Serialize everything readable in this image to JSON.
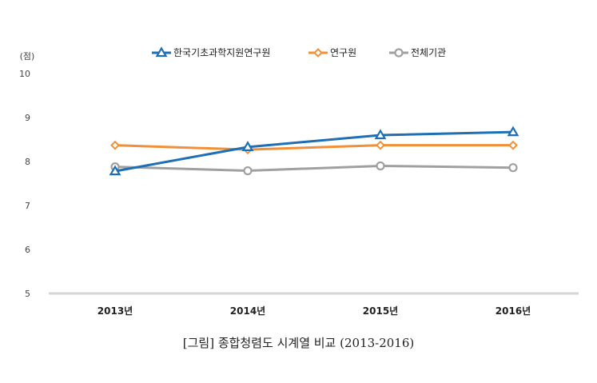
{
  "caption": "[그림] 종합청렴도 시계열 비교 (2013-2016)",
  "chart_data": {
    "type": "line",
    "categories": [
      "2013년",
      "2014년",
      "2015년",
      "2016년"
    ],
    "ylabel": "(점)",
    "ylim": [
      5,
      10
    ],
    "yticks": [
      5,
      6,
      7,
      8,
      9,
      10
    ],
    "grid": false,
    "legend_position": "top",
    "series": [
      {
        "name": "한국기초과학지원연구원",
        "values": [
          7.78,
          8.33,
          8.6,
          8.67
        ],
        "color": "#1f6fb5",
        "marker": "triangle"
      },
      {
        "name": "연구원",
        "values": [
          8.37,
          8.27,
          8.37,
          8.37
        ],
        "color": "#f0913a",
        "marker": "diamond"
      },
      {
        "name": "전체기관",
        "values": [
          7.88,
          7.79,
          7.9,
          7.86
        ],
        "color": "#a0a0a0",
        "marker": "circle"
      }
    ]
  }
}
